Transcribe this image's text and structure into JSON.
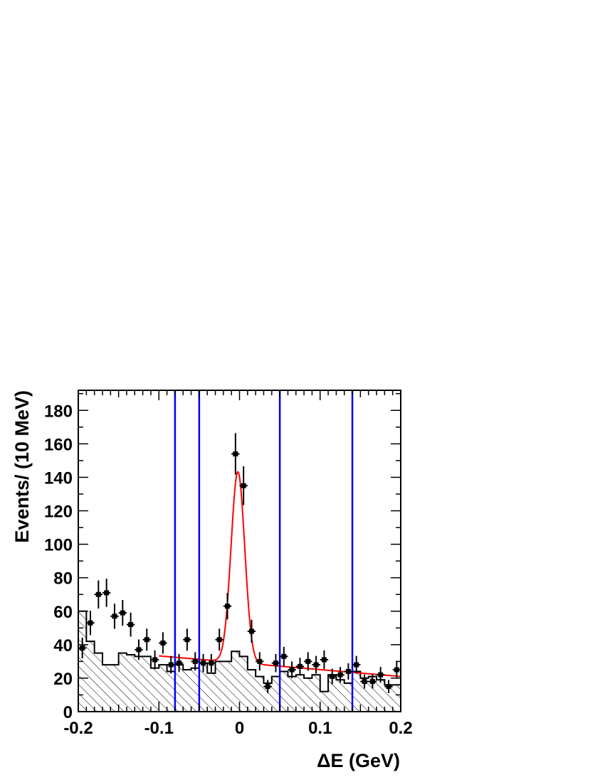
{
  "chart_data": {
    "type": "scatter",
    "title": "",
    "xlabel": "ΔE (GeV)",
    "ylabel": "Events/ (10 MeV)",
    "xlim": [
      -0.2,
      0.2
    ],
    "ylim": [
      0,
      192
    ],
    "x_ticks": [
      "-0.2",
      "-0.1",
      "0",
      "0.1",
      "0.2"
    ],
    "y_ticks": [
      "0",
      "20",
      "40",
      "60",
      "80",
      "100",
      "120",
      "140",
      "160",
      "180"
    ],
    "grid": false,
    "legend": "none",
    "colors": {
      "data_points": "#000000",
      "fit_curve": "#ff0000",
      "cut_lines": "#0000ff",
      "background_histogram": "#000000"
    },
    "data_points": {
      "x": [
        -0.195,
        -0.185,
        -0.175,
        -0.165,
        -0.155,
        -0.145,
        -0.135,
        -0.125,
        -0.115,
        -0.105,
        -0.095,
        -0.085,
        -0.075,
        -0.065,
        -0.055,
        -0.045,
        -0.035,
        -0.025,
        -0.015,
        -0.005,
        0.005,
        0.015,
        0.025,
        0.035,
        0.045,
        0.055,
        0.065,
        0.075,
        0.085,
        0.095,
        0.105,
        0.115,
        0.125,
        0.135,
        0.145,
        0.155,
        0.165,
        0.175,
        0.185,
        0.195
      ],
      "y": [
        38,
        53,
        70,
        71,
        57,
        59,
        52,
        37,
        43,
        31,
        41,
        28,
        29,
        43,
        30,
        29,
        29,
        43,
        63,
        154,
        135,
        48,
        30,
        15,
        29,
        33,
        25,
        27,
        30,
        28,
        31,
        21,
        22,
        24,
        28,
        18,
        18,
        22,
        15,
        25
      ],
      "yerr": [
        6.2,
        7.3,
        8.4,
        8.4,
        7.5,
        7.7,
        7.2,
        6.1,
        6.6,
        5.6,
        6.4,
        5.3,
        5.4,
        6.6,
        5.5,
        5.4,
        5.4,
        6.6,
        7.9,
        12.4,
        11.6,
        6.9,
        5.5,
        3.9,
        5.4,
        5.7,
        5.0,
        5.2,
        5.5,
        5.3,
        5.6,
        4.6,
        4.7,
        4.9,
        5.3,
        4.2,
        4.2,
        4.7,
        3.9,
        5.0
      ]
    },
    "background_histogram": {
      "bin_edges": [
        -0.2,
        -0.19,
        -0.18,
        -0.17,
        -0.16,
        -0.15,
        -0.14,
        -0.13,
        -0.12,
        -0.11,
        -0.1,
        -0.09,
        -0.08,
        -0.07,
        -0.06,
        -0.05,
        -0.04,
        -0.03,
        -0.02,
        -0.01,
        0.0,
        0.01,
        0.02,
        0.03,
        0.04,
        0.05,
        0.06,
        0.07,
        0.08,
        0.09,
        0.1,
        0.11,
        0.12,
        0.13,
        0.14,
        0.15,
        0.16,
        0.17,
        0.18,
        0.19,
        0.2
      ],
      "values": [
        60,
        42,
        35,
        28,
        28,
        35,
        34,
        33,
        33,
        26,
        28,
        24,
        28,
        25,
        26,
        29,
        23,
        30,
        30,
        36,
        33,
        25,
        21,
        17,
        21,
        24,
        21,
        22,
        20,
        22,
        12,
        22,
        19,
        17,
        24,
        20,
        21,
        19,
        16,
        16
      ]
    },
    "fit_curve": {
      "function": "linear background + gaussian",
      "x_range": [
        -0.1,
        0.2
      ],
      "background_intercept": 29.2,
      "background_slope": -41.0,
      "peak_mean": -0.002,
      "peak_sigma": 0.0085,
      "peak_amplitude": 114
    },
    "vertical_lines": [
      -0.08,
      -0.05,
      0.05,
      0.14
    ]
  }
}
